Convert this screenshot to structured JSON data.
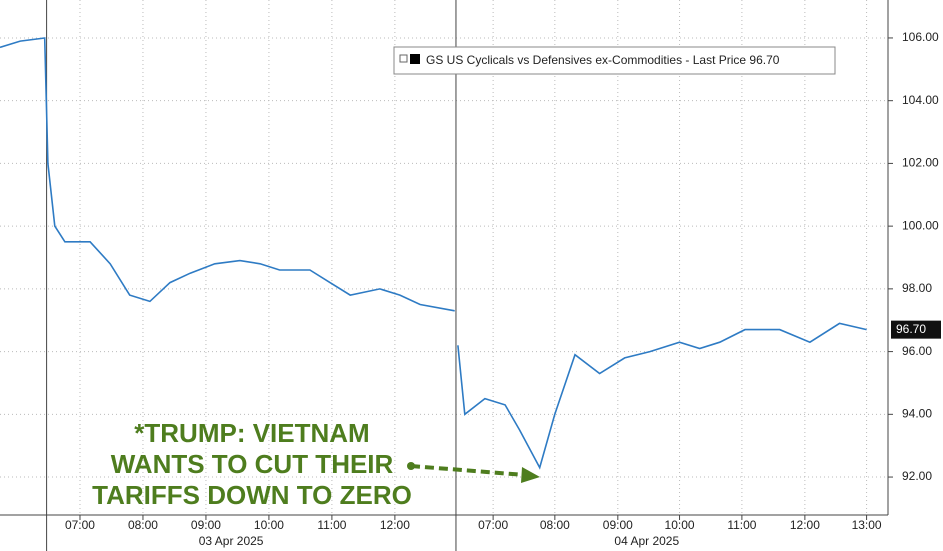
{
  "chart_data": {
    "type": "line",
    "series": [
      {
        "name": "GS US Cyclicals vs Defensives ex-Commodities - Last Price 96.70",
        "color": "#2e7bc4",
        "values": [
          105.7,
          105.9,
          106.0,
          102.0,
          100.0,
          99.5,
          99.5,
          98.8,
          97.8,
          97.6,
          98.2,
          98.5,
          98.8,
          98.9,
          98.8,
          98.6,
          98.6,
          98.2,
          97.8,
          98.0,
          97.8,
          97.5,
          97.3,
          null,
          96.2,
          94.0,
          94.5,
          94.3,
          93.5,
          92.3,
          94.0,
          95.9,
          95.3,
          95.8,
          96.0,
          96.3,
          96.1,
          96.3,
          96.7,
          96.7,
          96.3,
          96.9,
          96.7
        ]
      }
    ],
    "x": [
      5.73,
      6.05,
      6.44,
      6.49,
      6.6,
      6.76,
      7.16,
      7.48,
      7.79,
      8.11,
      8.43,
      8.75,
      9.14,
      9.54,
      9.86,
      10.17,
      10.65,
      10.97,
      11.29,
      11.76,
      12.08,
      12.4,
      12.95,
      12.97,
      13.0,
      13.11,
      13.43,
      13.75,
      13.98,
      14.3,
      14.54,
      14.86,
      15.25,
      15.65,
      16.05,
      16.52,
      16.84,
      17.16,
      17.56,
      18.11,
      18.59,
      19.06,
      19.49
    ],
    "xlim": [
      5.73,
      19.83
    ],
    "xticks": [
      {
        "value": 7,
        "label": "07:00"
      },
      {
        "value": 8,
        "label": "08:00"
      },
      {
        "value": 9,
        "label": "09:00"
      },
      {
        "value": 10,
        "label": "10:00"
      },
      {
        "value": 11,
        "label": "11:00"
      },
      {
        "value": 12,
        "label": "12:00"
      },
      {
        "value": 13.56,
        "label": "07:00"
      },
      {
        "value": 14.54,
        "label": "08:00"
      },
      {
        "value": 15.54,
        "label": "09:00"
      },
      {
        "value": 16.52,
        "label": "10:00"
      },
      {
        "value": 17.51,
        "label": "11:00"
      },
      {
        "value": 18.51,
        "label": "12:00"
      },
      {
        "value": 19.49,
        "label": "13:00"
      }
    ],
    "day_labels": [
      {
        "value": 9.4,
        "label": "03 Apr 2025"
      },
      {
        "value": 16.0,
        "label": "04 Apr 2025"
      }
    ],
    "day_breaks": [
      6.47,
      12.97
    ],
    "ylim": [
      90.79,
      107.21
    ],
    "yticks": [
      {
        "value": 92,
        "label": "92.00"
      },
      {
        "value": 94,
        "label": "94.00"
      },
      {
        "value": 96,
        "label": "96.00"
      },
      {
        "value": 98,
        "label": "98.00"
      },
      {
        "value": 100,
        "label": "100.00"
      },
      {
        "value": 102,
        "label": "102.00"
      },
      {
        "value": 104,
        "label": "104.00"
      },
      {
        "value": 106,
        "label": "106.00"
      }
    ],
    "last_price": {
      "value": 96.7,
      "label": "96.70"
    },
    "grid": true,
    "annotation": [
      "*TRUMP: VIETNAM",
      "WANTS TO CUT THEIR",
      "TARIFFS DOWN TO ZERO"
    ]
  }
}
